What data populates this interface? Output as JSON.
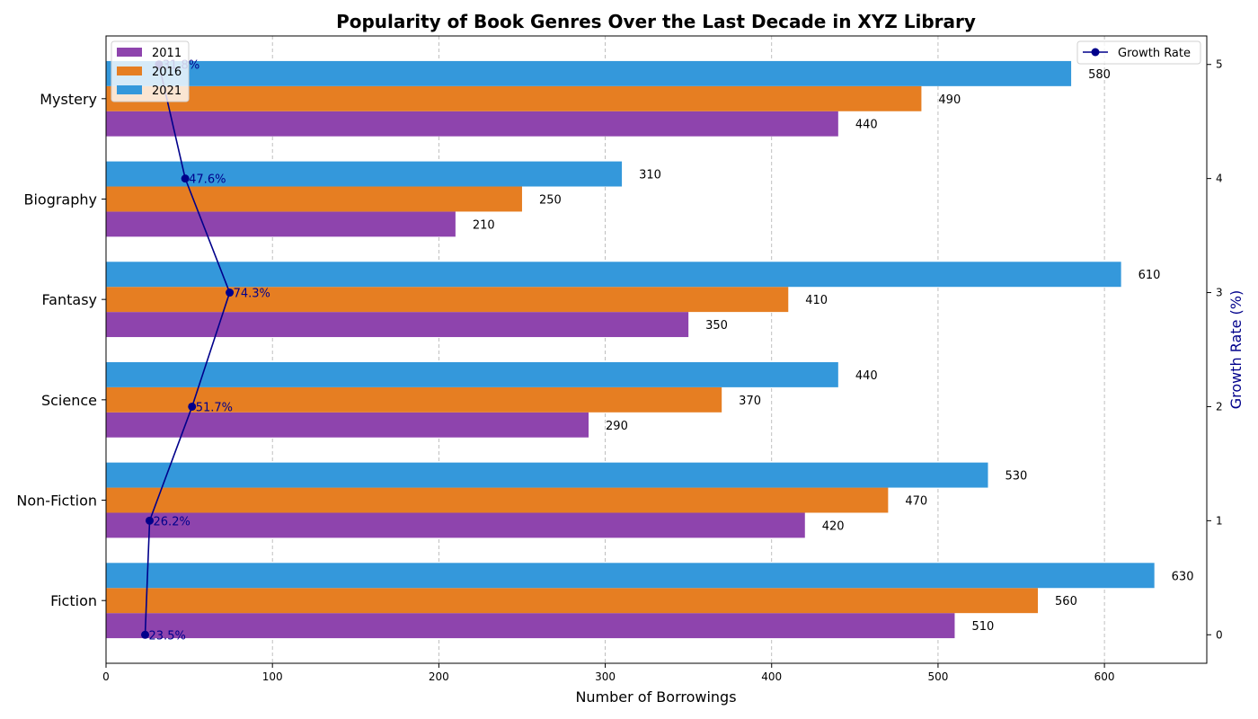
{
  "chart_data": {
    "type": "bar",
    "orientation": "horizontal",
    "title": "Popularity of Book Genres Over the Last Decade in XYZ Library",
    "xlabel": "Number of Borrowings",
    "y2label": "Growth Rate (%)",
    "categories": [
      "Fiction",
      "Non-Fiction",
      "Science",
      "Fantasy",
      "Biography",
      "Mystery"
    ],
    "series": [
      {
        "name": "2011",
        "color": "#8e44ad",
        "values": [
          510,
          420,
          290,
          350,
          210,
          440
        ]
      },
      {
        "name": "2016",
        "color": "#e67e22",
        "values": [
          560,
          470,
          370,
          410,
          250,
          490
        ]
      },
      {
        "name": "2021",
        "color": "#3498db",
        "values": [
          630,
          530,
          440,
          610,
          310,
          580
        ]
      }
    ],
    "growth": {
      "name": "Growth Rate",
      "color": "#00008b",
      "values": [
        23.5,
        26.2,
        51.7,
        74.3,
        47.6,
        31.8
      ],
      "labels": [
        "23.5%",
        "26.2%",
        "51.7%",
        "74.3%",
        "47.6%",
        "31.8%"
      ]
    },
    "xlim": [
      0,
      661.5
    ],
    "xticks": [
      0,
      100,
      200,
      300,
      400,
      500,
      600
    ],
    "y2lim": [
      -0.25,
      5.25
    ],
    "y2ticks": [
      0,
      1,
      2,
      3,
      4,
      5
    ],
    "grid": "x-dashed",
    "legend_bars": "top-left",
    "legend_line": "top-right"
  }
}
